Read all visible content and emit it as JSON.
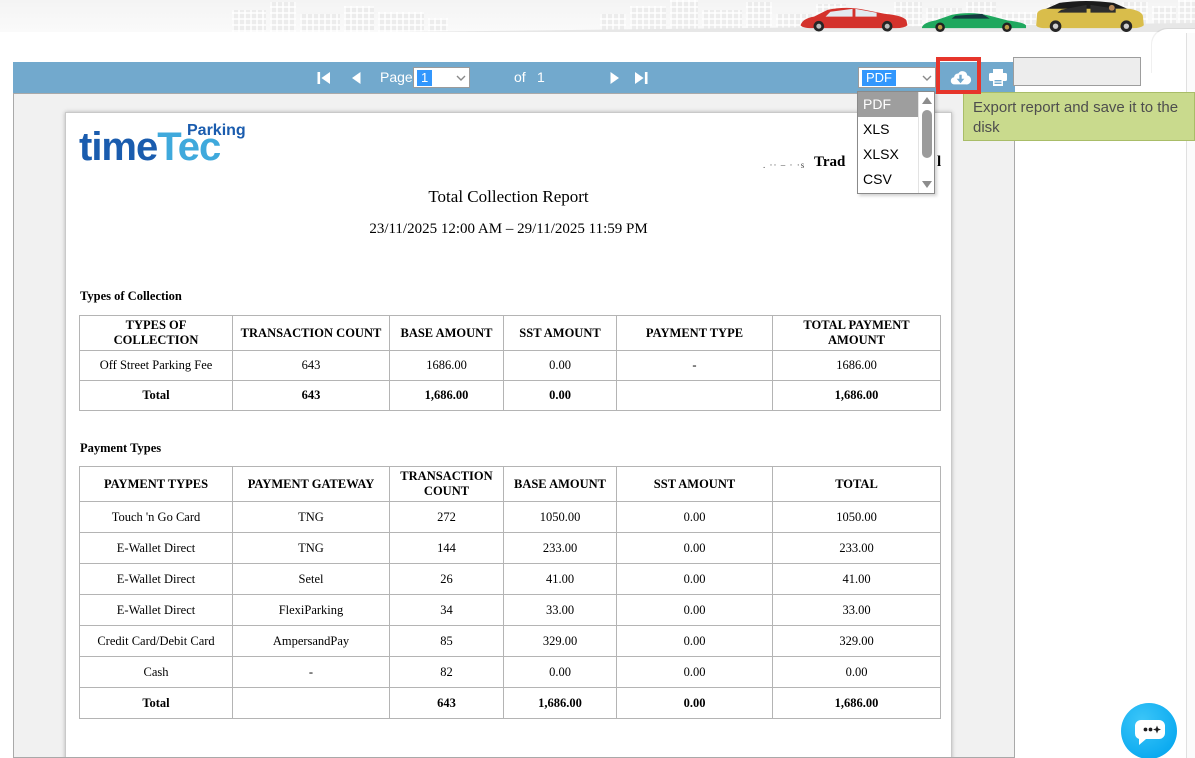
{
  "header_art": {
    "illustrations": [
      "red-car",
      "green-supercar",
      "yellow-suv"
    ]
  },
  "toolbar": {
    "pager": {
      "page_label": "Page",
      "current_page": "1",
      "of_label": "of",
      "total_pages": "1"
    },
    "export_format_value": "PDF",
    "export_format_options": [
      "PDF",
      "XLS",
      "XLSX",
      "CSV"
    ],
    "export_tooltip": "Export report and save it to the disk",
    "icons": [
      "first-page",
      "prev-page",
      "next-page",
      "last-page",
      "cloud-download",
      "printer"
    ]
  },
  "report": {
    "logo": {
      "part1": "time",
      "part2": "Tec",
      "part3": "Parking"
    },
    "partially_hidden_header": {
      "left": ". ·· – · ·s",
      "mid": "Trad",
      "right": "l"
    },
    "title": "Total Collection Report",
    "period": "23/11/2025 12:00 AM – 29/11/2025 11:59 PM",
    "types_of_collection": {
      "label": "Types of Collection",
      "columns": [
        "TYPES OF COLLECTION",
        "TRANSACTION COUNT",
        "BASE AMOUNT",
        "SST AMOUNT",
        "PAYMENT TYPE",
        "TOTAL PAYMENT AMOUNT"
      ],
      "rows": [
        [
          "Off Street Parking Fee",
          "643",
          "1686.00",
          "0.00",
          "-",
          "1686.00"
        ],
        [
          "Total",
          "643",
          "1,686.00",
          "0.00",
          "",
          "1,686.00"
        ]
      ]
    },
    "payment_types": {
      "label": "Payment Types",
      "columns": [
        "PAYMENT TYPES",
        "PAYMENT GATEWAY",
        "TRANSACTION COUNT",
        "BASE AMOUNT",
        "SST AMOUNT",
        "TOTAL"
      ],
      "rows": [
        [
          "Touch 'n Go Card",
          "TNG",
          "272",
          "1050.00",
          "0.00",
          "1050.00"
        ],
        [
          "E-Wallet Direct",
          "TNG",
          "144",
          "233.00",
          "0.00",
          "233.00"
        ],
        [
          "E-Wallet Direct",
          "Setel",
          "26",
          "41.00",
          "0.00",
          "41.00"
        ],
        [
          "E-Wallet Direct",
          "FlexiParking",
          "34",
          "33.00",
          "0.00",
          "33.00"
        ],
        [
          "Credit Card/Debit Card",
          "AmpersandPay",
          "85",
          "329.00",
          "0.00",
          "329.00"
        ],
        [
          "Cash",
          "-",
          "82",
          "0.00",
          "0.00",
          "0.00"
        ],
        [
          "Total",
          "",
          "643",
          "1,686.00",
          "0.00",
          "1,686.00"
        ]
      ]
    }
  },
  "chat": {
    "icon": "chat-bubble"
  },
  "colors": {
    "toolbar_blue": "#72a9cd",
    "tooltip_green": "#c9da8d",
    "highlight_red": "#e6352b",
    "select_highlight_blue": "#3297fd",
    "menu_selected_gray": "#9e9e9e",
    "logo_dark_blue": "#1a5cae",
    "logo_light_blue": "#3fa9dc",
    "chat_blue": "#0baaf0"
  }
}
